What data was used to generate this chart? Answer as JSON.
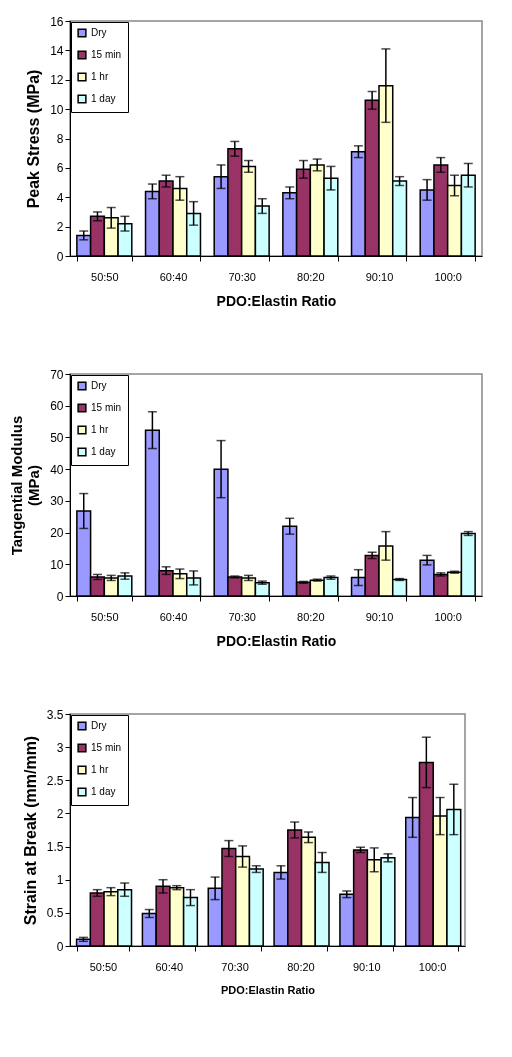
{
  "chart_data": [
    {
      "type": "bar",
      "xlabel": "PDO:Elastin Ratio",
      "ylabel": "Peak Stress (MPa)",
      "categories": [
        "50:50",
        "60:40",
        "70:30",
        "80:20",
        "90:10",
        "100:0"
      ],
      "ylim": [
        0,
        16
      ],
      "yticks": [
        0,
        2,
        4,
        6,
        8,
        10,
        12,
        14,
        16
      ],
      "legend": "top left",
      "grid": false,
      "series": [
        {
          "name": "Dry",
          "color": "#9999ff",
          "values": [
            1.4,
            4.4,
            5.4,
            4.3,
            7.1,
            4.5
          ],
          "errors": [
            0.3,
            0.5,
            0.8,
            0.4,
            0.4,
            0.7
          ]
        },
        {
          "name": "15 min",
          "color": "#993366",
          "values": [
            2.7,
            5.1,
            7.3,
            5.9,
            10.6,
            6.2
          ],
          "errors": [
            0.3,
            0.4,
            0.5,
            0.6,
            0.6,
            0.5
          ]
        },
        {
          "name": "1 hr",
          "color": "#ffffcc",
          "values": [
            2.6,
            4.6,
            6.1,
            6.2,
            11.6,
            4.8
          ],
          "errors": [
            0.7,
            0.8,
            0.4,
            0.4,
            2.5,
            0.7
          ]
        },
        {
          "name": "1 day",
          "color": "#ccffff",
          "values": [
            2.2,
            2.9,
            3.4,
            5.3,
            5.1,
            5.5
          ],
          "errors": [
            0.5,
            0.8,
            0.5,
            0.8,
            0.3,
            0.8
          ]
        }
      ]
    },
    {
      "type": "bar",
      "xlabel": "PDO:Elastin Ratio",
      "ylabel": "Tangential Modulus\n(MPa)",
      "categories": [
        "50:50",
        "60:40",
        "70:30",
        "80:20",
        "90:10",
        "100:0"
      ],
      "ylim": [
        0,
        70
      ],
      "yticks": [
        0,
        10,
        20,
        30,
        40,
        50,
        60,
        70
      ],
      "legend": "top left",
      "grid": false,
      "series": [
        {
          "name": "Dry",
          "color": "#9999ff",
          "values": [
            26.8,
            52.3,
            40.0,
            22.0,
            5.8,
            11.3
          ],
          "errors": [
            5.5,
            5.8,
            9.0,
            2.5,
            2.5,
            1.5
          ]
        },
        {
          "name": "15 min",
          "color": "#993366",
          "values": [
            6.0,
            8.0,
            6.0,
            4.3,
            12.8,
            6.8
          ],
          "errors": [
            0.8,
            1.2,
            0.3,
            0.3,
            1.0,
            0.5
          ]
        },
        {
          "name": "1 hr",
          "color": "#ffffcc",
          "values": [
            5.7,
            7.0,
            5.7,
            5.0,
            15.8,
            7.5
          ],
          "errors": [
            0.8,
            1.5,
            0.8,
            0.3,
            4.5,
            0.3
          ]
        },
        {
          "name": "1 day",
          "color": "#ccffff",
          "values": [
            6.3,
            5.7,
            4.2,
            5.8,
            5.2,
            19.7
          ],
          "errors": [
            1.0,
            2.2,
            0.5,
            0.5,
            0.3,
            0.6
          ]
        }
      ]
    },
    {
      "type": "bar",
      "xlabel": "PDO:Elastin Ratio",
      "ylabel": "Strain at Break (mm/mm)",
      "categories": [
        "50:50",
        "60:40",
        "70:30",
        "80:20",
        "90:10",
        "100:0"
      ],
      "ylim": [
        0,
        3.5
      ],
      "yticks": [
        0,
        0.5,
        1,
        1.5,
        2,
        2.5,
        3,
        3.5
      ],
      "legend": "top left",
      "grid": false,
      "series": [
        {
          "name": "Dry",
          "color": "#9999ff",
          "values": [
            0.1,
            0.49,
            0.87,
            1.11,
            0.78,
            1.94
          ],
          "errors": [
            0.03,
            0.06,
            0.17,
            0.1,
            0.05,
            0.3
          ]
        },
        {
          "name": "15 min",
          "color": "#993366",
          "values": [
            0.8,
            0.9,
            1.47,
            1.75,
            1.45,
            2.77
          ],
          "errors": [
            0.05,
            0.1,
            0.12,
            0.12,
            0.04,
            0.38
          ]
        },
        {
          "name": "1 hr",
          "color": "#ffffcc",
          "values": [
            0.82,
            0.88,
            1.35,
            1.64,
            1.3,
            1.96
          ],
          "errors": [
            0.06,
            0.03,
            0.16,
            0.08,
            0.18,
            0.28
          ]
        },
        {
          "name": "1 day",
          "color": "#ccffff",
          "values": [
            0.85,
            0.73,
            1.16,
            1.26,
            1.33,
            2.06
          ],
          "errors": [
            0.1,
            0.12,
            0.05,
            0.15,
            0.06,
            0.38
          ]
        }
      ]
    }
  ]
}
